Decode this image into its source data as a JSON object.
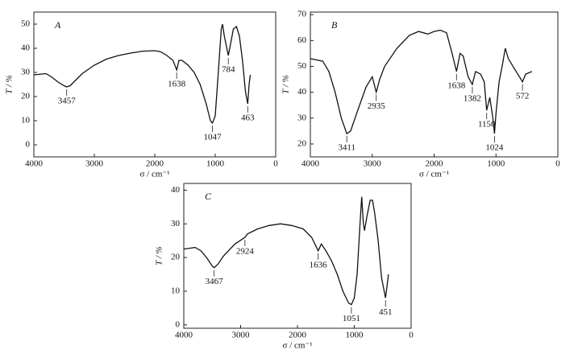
{
  "chart_data": [
    {
      "type": "line",
      "title": "A",
      "xlabel": "σ / cm⁻¹",
      "ylabel": "T / %",
      "xlim": [
        4000,
        0
      ],
      "xticks": [
        4000,
        3000,
        2000,
        1000,
        0
      ],
      "ylim": [
        -5,
        55
      ],
      "yticks": [
        0,
        10,
        20,
        30,
        40,
        50
      ],
      "x": [
        4000,
        3800,
        3700,
        3600,
        3500,
        3457,
        3400,
        3300,
        3200,
        3000,
        2800,
        2600,
        2400,
        2200,
        2000,
        1900,
        1800,
        1700,
        1638,
        1600,
        1550,
        1450,
        1350,
        1250,
        1150,
        1080,
        1047,
        1000,
        950,
        900,
        880,
        850,
        800,
        784,
        760,
        700,
        650,
        600,
        550,
        500,
        463,
        440,
        420
      ],
      "series": [
        {
          "color": "#111111",
          "values": [
            29,
            29.5,
            28,
            26,
            24.5,
            24,
            24.5,
            27,
            29.5,
            33,
            35.5,
            37,
            38,
            38.8,
            39,
            38.5,
            37,
            35,
            31,
            35,
            35,
            33,
            30,
            25,
            17,
            10,
            9,
            12,
            30,
            48,
            50,
            45,
            39,
            37,
            40,
            48,
            49,
            45,
            35,
            22,
            17,
            25,
            29
          ]
        }
      ],
      "annotations": [
        {
          "x": 3457,
          "y": 24
        },
        {
          "x": 1638,
          "y": 31
        },
        {
          "x": 1047,
          "y": 9
        },
        {
          "x": 784,
          "y": 37
        },
        {
          "x": 463,
          "y": 17
        }
      ]
    },
    {
      "type": "line",
      "title": "B",
      "xlabel": "σ / cm⁻¹",
      "ylabel": "T / %",
      "xlim": [
        4000,
        0
      ],
      "xticks": [
        4000,
        3000,
        2000,
        1000,
        0
      ],
      "ylim": [
        15,
        71
      ],
      "yticks": [
        20,
        30,
        40,
        50,
        60,
        70
      ],
      "x": [
        4000,
        3800,
        3700,
        3600,
        3500,
        3411,
        3350,
        3250,
        3100,
        3000,
        2935,
        2880,
        2800,
        2600,
        2400,
        2250,
        2100,
        2000,
        1900,
        1800,
        1720,
        1638,
        1580,
        1530,
        1450,
        1382,
        1330,
        1250,
        1190,
        1150,
        1100,
        1050,
        1024,
        1000,
        950,
        900,
        850,
        800,
        700,
        620,
        572,
        520,
        420
      ],
      "series": [
        {
          "color": "#111111",
          "values": [
            53,
            52,
            48,
            40,
            30,
            24,
            25,
            32,
            42,
            46,
            40,
            45,
            50,
            57,
            62,
            63.5,
            62.5,
            63.5,
            64,
            63,
            56,
            48,
            55,
            54,
            46,
            43,
            48,
            47,
            44,
            33,
            38,
            30,
            24,
            32,
            44,
            50,
            57,
            53,
            49,
            46,
            44,
            47,
            48
          ]
        }
      ],
      "annotations": [
        {
          "x": 3411,
          "y": 24
        },
        {
          "x": 2935,
          "y": 40
        },
        {
          "x": 1638,
          "y": 48
        },
        {
          "x": 1382,
          "y": 43
        },
        {
          "x": 1150,
          "y": 33
        },
        {
          "x": 1024,
          "y": 24
        },
        {
          "x": 572,
          "y": 44
        }
      ]
    },
    {
      "type": "line",
      "title": "C",
      "xlabel": "σ / cm⁻¹",
      "ylabel": "T / %",
      "xlim": [
        4000,
        0
      ],
      "xticks": [
        4000,
        3000,
        2000,
        1000,
        0
      ],
      "ylim": [
        -1,
        42
      ],
      "yticks": [
        0,
        10,
        20,
        30,
        40
      ],
      "x": [
        4000,
        3800,
        3700,
        3600,
        3500,
        3467,
        3400,
        3300,
        3100,
        2924,
        2880,
        2700,
        2500,
        2300,
        2100,
        1900,
        1750,
        1636,
        1580,
        1500,
        1400,
        1300,
        1200,
        1100,
        1051,
        1000,
        950,
        900,
        870,
        840,
        820,
        780,
        720,
        680,
        640,
        580,
        520,
        451,
        420,
        400
      ],
      "series": [
        {
          "color": "#111111",
          "values": [
            22.5,
            23,
            22,
            20,
            17.5,
            17,
            18,
            20.5,
            24,
            26,
            27,
            28.5,
            29.5,
            30,
            29.5,
            28.5,
            26,
            22,
            24,
            22,
            19,
            15,
            10,
            6.5,
            6,
            8,
            15,
            30,
            38,
            30,
            28,
            32,
            37,
            37,
            33,
            25,
            14,
            8,
            12,
            15
          ]
        }
      ],
      "annotations": [
        {
          "x": 3467,
          "y": 17
        },
        {
          "x": 2924,
          "y": 26
        },
        {
          "x": 1636,
          "y": 22
        },
        {
          "x": 1051,
          "y": 6
        },
        {
          "x": 451,
          "y": 8
        }
      ]
    }
  ]
}
